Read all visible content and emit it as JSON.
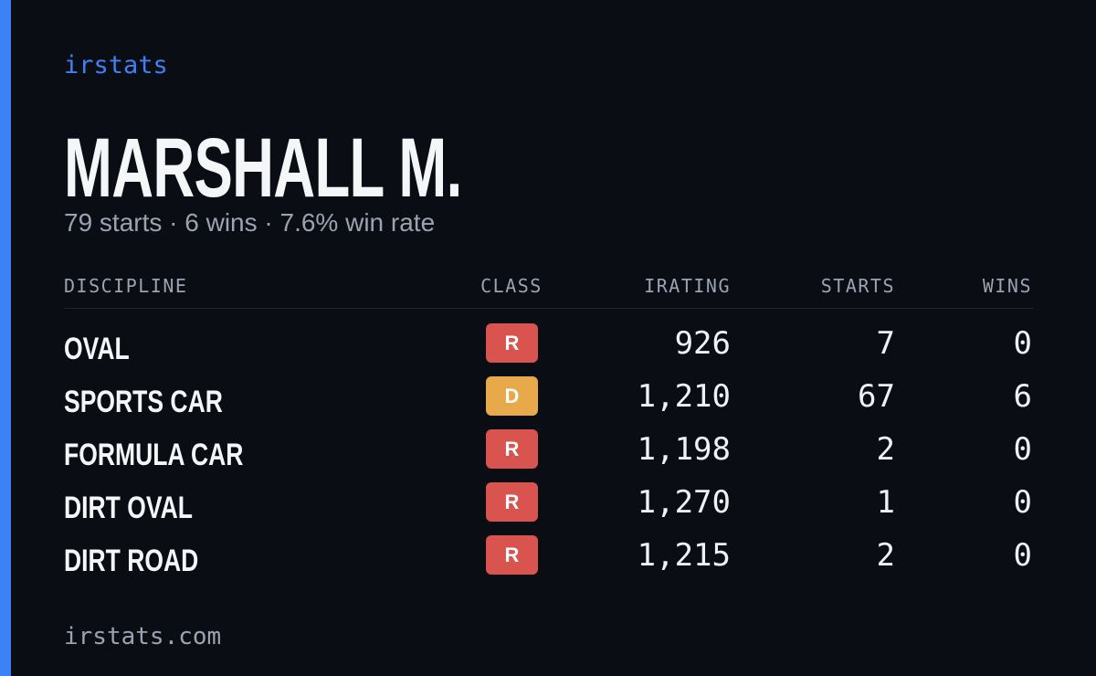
{
  "brand": "irstats",
  "driver": {
    "name": "MARSHALL M.",
    "summary": "79 starts · 6 wins · 7.6% win rate"
  },
  "table": {
    "headers": [
      "DISCIPLINE",
      "CLASS",
      "IRATING",
      "STARTS",
      "WINS"
    ],
    "rows": [
      {
        "discipline": "OVAL",
        "class": "R",
        "class_color": "#d9534f",
        "irating": "926",
        "starts": 7,
        "wins": 0
      },
      {
        "discipline": "SPORTS CAR",
        "class": "D",
        "class_color": "#e8a94a",
        "irating": "1,210",
        "starts": 67,
        "wins": 6
      },
      {
        "discipline": "FORMULA CAR",
        "class": "R",
        "class_color": "#d9534f",
        "irating": "1,198",
        "starts": 2,
        "wins": 0
      },
      {
        "discipline": "DIRT OVAL",
        "class": "R",
        "class_color": "#d9534f",
        "irating": "1,270",
        "starts": 1,
        "wins": 0
      },
      {
        "discipline": "DIRT ROAD",
        "class": "R",
        "class_color": "#d9534f",
        "irating": "1,215",
        "starts": 2,
        "wins": 0
      }
    ]
  },
  "footer": "irstats.com"
}
